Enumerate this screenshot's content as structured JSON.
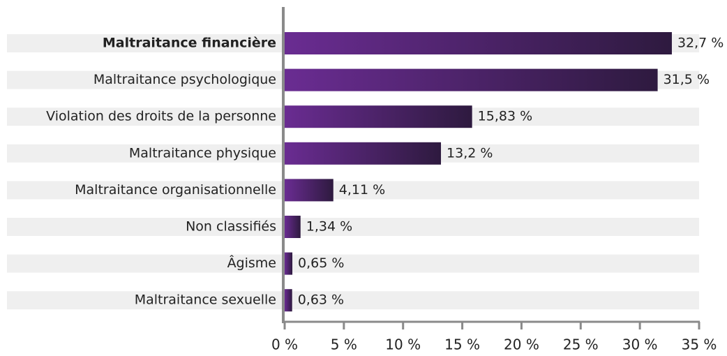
{
  "chart_data": {
    "type": "bar",
    "orientation": "horizontal",
    "categories": [
      "Maltraitance financière",
      "Maltraitance psychologique",
      "Violation des droits de la personne",
      "Maltraitance physique",
      "Maltraitance organisationnelle",
      "Non classifiés",
      "Âgisme",
      "Maltraitance sexuelle"
    ],
    "values": [
      32.7,
      31.5,
      15.83,
      13.2,
      4.11,
      1.34,
      0.65,
      0.63
    ],
    "value_labels": [
      "32,7 %",
      "31,5 %",
      "15,83 %",
      "13,2 %",
      "4,11 %",
      "1,34 %",
      "0,65 %",
      "0,63 %"
    ],
    "color": "#5b2a80",
    "xlim": [
      0,
      35
    ],
    "xticks": [
      {
        "value": 0,
        "label": "0 %"
      },
      {
        "value": 5,
        "label": "5 %"
      },
      {
        "value": 10,
        "label": "10 %"
      },
      {
        "value": 15,
        "label": "15 %"
      },
      {
        "value": 20,
        "label": "20 %"
      },
      {
        "value": 25,
        "label": "25 %"
      },
      {
        "value": 30,
        "label": "30 %"
      },
      {
        "value": 35,
        "label": "35 %"
      }
    ]
  }
}
